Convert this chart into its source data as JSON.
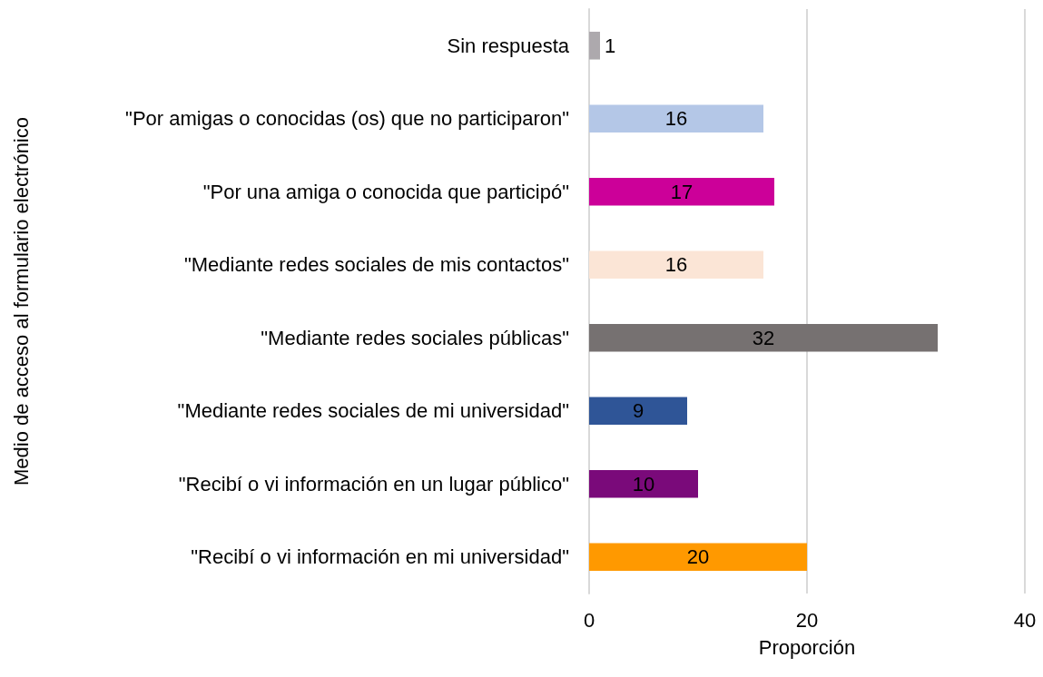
{
  "chart_data": {
    "type": "bar",
    "orientation": "horizontal",
    "xlabel": "Proporción",
    "ylabel": "Medio de acceso al formulario electrónico",
    "categories": [
      "Sin respuesta",
      "\"Por amigas o conocidas (os) que no participaron\"",
      "\"Por una amiga o conocida que participó\"",
      "\"Mediante redes sociales de mis contactos\"",
      "\"Mediante redes sociales públicas\"",
      "\"Mediante redes sociales de mi universidad\"",
      "\"Recibí o vi información en un lugar público\"",
      "\"Recibí o vi información en mi universidad\""
    ],
    "values": [
      1,
      16,
      17,
      16,
      32,
      9,
      10,
      20
    ],
    "colors": [
      "#ada9ad",
      "#b4c7e7",
      "#cc0099",
      "#fbe5d6",
      "#767171",
      "#2f5597",
      "#7a0a7a",
      "#ff9900"
    ],
    "xlim": [
      0,
      40
    ],
    "xticks": [
      0,
      20,
      40
    ],
    "grid": "x",
    "data_labels": true
  }
}
